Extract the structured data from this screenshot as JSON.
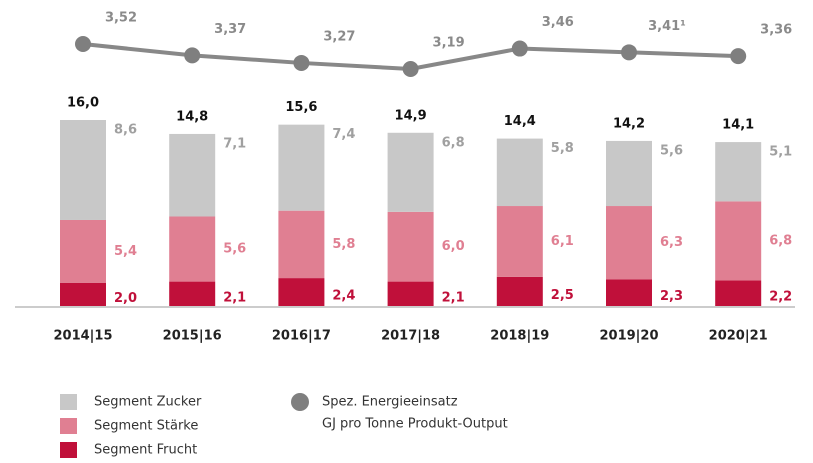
{
  "chart_data": {
    "type": "bar",
    "stacked": true,
    "categories": [
      "2014|15",
      "2015|16",
      "2016|17",
      "2017|18",
      "2018|19",
      "2019|20",
      "2020|21"
    ],
    "series": [
      {
        "name": "Segment Frucht",
        "color": "#c0103a",
        "values": [
          2.0,
          2.1,
          2.4,
          2.1,
          2.5,
          2.3,
          2.2
        ],
        "value_labels": [
          "2,0",
          "2,1",
          "2,4",
          "2,1",
          "2,5",
          "2,3",
          "2,2"
        ]
      },
      {
        "name": "Segment Stärke",
        "color": "#e07f92",
        "values": [
          5.4,
          5.6,
          5.8,
          6.0,
          6.1,
          6.3,
          6.8
        ],
        "value_labels": [
          "5,4",
          "5,6",
          "5,8",
          "6,0",
          "6,1",
          "6,3",
          "6,8"
        ]
      },
      {
        "name": "Segment Zucker",
        "color": "#c8c8c8",
        "values": [
          8.6,
          7.1,
          7.4,
          6.8,
          5.8,
          5.6,
          5.1
        ],
        "value_labels": [
          "8,6",
          "7,1",
          "7,4",
          "6,8",
          "5,8",
          "5,6",
          "5,1"
        ]
      }
    ],
    "totals": [
      16.0,
      14.8,
      15.6,
      14.9,
      14.4,
      14.2,
      14.1
    ],
    "total_labels": [
      "16,0",
      "14,8",
      "15,6",
      "14,9",
      "14,4",
      "14,2",
      "14,1"
    ],
    "line": {
      "type": "line",
      "name": "Spez. Energieeinsatz",
      "unit": "GJ pro Tonne Produkt-Output",
      "color": "#888888",
      "values": [
        3.52,
        3.37,
        3.27,
        3.19,
        3.46,
        3.41,
        3.36
      ],
      "value_labels": [
        "3,52",
        "3,37",
        "3,27",
        "3,19",
        "3,46",
        "3,41¹",
        "3,36"
      ]
    }
  }
}
